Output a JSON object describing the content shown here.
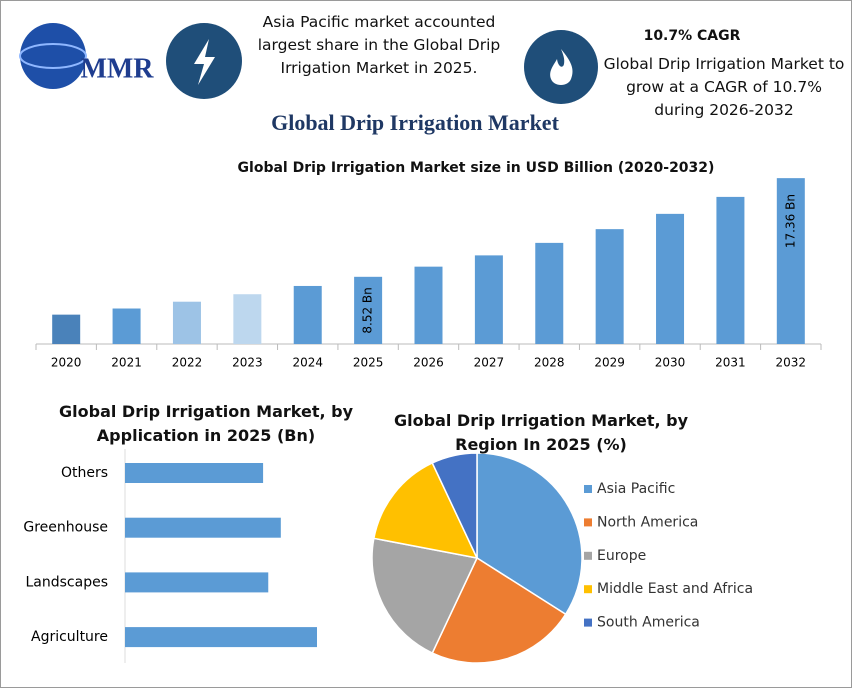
{
  "header": {
    "logo": "MMR",
    "note_left": "Asia Pacific market accounted largest share in the Global Drip Irrigation Market in 2025.",
    "cagr": "10.7% CAGR",
    "note_right": "Global Drip Irrigation Market to grow at a CAGR of 10.7% during 2026-2032"
  },
  "title": "Global Drip Irrigation Market",
  "chart_data": [
    {
      "type": "bar",
      "title": "Global Drip Irrigation Market size in USD Billion (2020-2032)",
      "categories": [
        "2020",
        "2021",
        "2022",
        "2023",
        "2024",
        "2025",
        "2026",
        "2027",
        "2028",
        "2029",
        "2030",
        "2031",
        "2032"
      ],
      "values": [
        5.13,
        5.68,
        6.29,
        6.96,
        7.7,
        8.52,
        9.43,
        10.44,
        11.56,
        12.79,
        14.16,
        15.68,
        17.36
      ],
      "value_labels": [
        null,
        null,
        null,
        null,
        null,
        "8.52 Bn",
        null,
        null,
        null,
        null,
        null,
        null,
        "17.36 Bn"
      ],
      "colors": [
        "#4a82ba",
        "#5b9bd5",
        "#9dc3e6",
        "#bdd7ee",
        "#5b9bd5",
        "#5b9bd5",
        "#5b9bd5",
        "#5b9bd5",
        "#5b9bd5",
        "#5b9bd5",
        "#5b9bd5",
        "#5b9bd5",
        "#5b9bd5"
      ],
      "ylim": [
        2.5,
        18
      ]
    },
    {
      "type": "barh",
      "title": "Global Drip Irrigation Market, by Application in 2025 (Bn)",
      "categories": [
        "Others",
        "Greenhouse",
        "Landscapes",
        "Agriculture"
      ],
      "values": [
        1.87,
        2.11,
        1.94,
        2.6
      ],
      "color": "#5b9bd5"
    },
    {
      "type": "pie",
      "title": "Global Drip Irrigation Market, by Region In 2025 (%)",
      "categories": [
        "Asia Pacific",
        "North America",
        "Europe",
        "Middle East and Africa",
        "South America"
      ],
      "values": [
        34,
        23,
        21,
        15,
        7
      ],
      "colors": [
        "#5b9bd5",
        "#ed7d31",
        "#a5a5a5",
        "#ffc000",
        "#4472c4"
      ],
      "legend": "right"
    }
  ]
}
